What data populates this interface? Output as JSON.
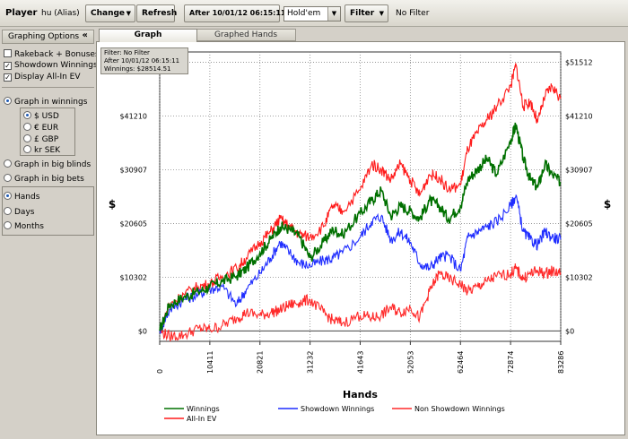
{
  "toolbar": {
    "player_label": "Player",
    "player_value": "hu (Alias)",
    "change_label": "Change",
    "refresh_label": "Refresh",
    "date_filter_label": "After 10/01/12 06:15:11",
    "game_select_value": "Hold'em",
    "filter_label": "Filter",
    "filter_status": "No Filter"
  },
  "sidebar": {
    "title": "Graphing Options",
    "collapse_glyph": "«",
    "checkboxes": [
      {
        "label": "Rakeback + Bonuses",
        "checked": false
      },
      {
        "label": "Showdown Winnings",
        "checked": true
      },
      {
        "label": "Display All-In EV",
        "checked": true
      }
    ],
    "mode_options": [
      {
        "label": "Graph in winnings",
        "selected": true
      },
      {
        "label": "Graph in big blinds",
        "selected": false
      },
      {
        "label": "Graph in big bets",
        "selected": false
      }
    ],
    "currency_options": [
      {
        "label": "$ USD",
        "selected": true
      },
      {
        "label": "€ EUR",
        "selected": false
      },
      {
        "label": "£ GBP",
        "selected": false
      },
      {
        "label": "kr SEK",
        "selected": false
      }
    ],
    "axis_options": [
      {
        "label": "Hands",
        "selected": true
      },
      {
        "label": "Days",
        "selected": false
      },
      {
        "label": "Months",
        "selected": false
      }
    ]
  },
  "tabs": {
    "graph": "Graph",
    "graphed_hands": "Graphed Hands"
  },
  "info_box": {
    "line1": "Filter: No Filter",
    "line2": "After 10/01/12 06:15:11",
    "line3": "Winnings: $28514.51"
  },
  "chart_data": {
    "type": "line",
    "xlabel": "Hands",
    "ylabel": "$",
    "xlim": [
      0,
      83286
    ],
    "ylim": [
      -2000,
      53500
    ],
    "x_ticks": [
      "0",
      "10411",
      "20821",
      "31232",
      "41643",
      "52053",
      "62464",
      "72874",
      "83286"
    ],
    "x_tick_values": [
      0,
      10411,
      20821,
      31232,
      41643,
      52053,
      62464,
      72874,
      83286
    ],
    "y_ticks": [
      "$0",
      "$10302",
      "$20605",
      "$30907",
      "$41210",
      "$51512"
    ],
    "y_tick_values": [
      0,
      10302,
      20605,
      30907,
      41210,
      51512
    ],
    "grid": true,
    "legend_position": "bottom",
    "series": [
      {
        "name": "Winnings",
        "color": "#007000",
        "x": [
          0,
          2000,
          5000,
          8000,
          10411,
          13000,
          16000,
          18000,
          20821,
          23000,
          25000,
          27000,
          29000,
          31232,
          34000,
          36000,
          38000,
          41643,
          44000,
          46000,
          48000,
          50000,
          52053,
          54000,
          56000,
          58000,
          60000,
          62464,
          64000,
          66000,
          68000,
          70000,
          72874,
          74000,
          75500,
          77000,
          78500,
          80000,
          81500,
          83286
        ],
        "y": [
          0,
          5000,
          6500,
          7500,
          8500,
          9500,
          10500,
          12000,
          15000,
          17500,
          20000,
          19500,
          18000,
          14000,
          17000,
          19500,
          18500,
          22500,
          25000,
          27000,
          22000,
          24000,
          23000,
          21500,
          25000,
          24000,
          21500,
          24000,
          29000,
          31000,
          33000,
          30000,
          36500,
          39500,
          33000,
          29000,
          27500,
          32000,
          30000,
          28500
        ]
      },
      {
        "name": "Showdown Winnings",
        "color": "#1f2dff",
        "x": [
          0,
          2000,
          5000,
          8000,
          10411,
          13000,
          16000,
          18000,
          20821,
          23000,
          25000,
          27000,
          29000,
          31232,
          34000,
          36000,
          38000,
          41643,
          44000,
          46000,
          48000,
          50000,
          52053,
          54000,
          56000,
          58000,
          60000,
          62464,
          64000,
          66000,
          68000,
          70000,
          72874,
          74000,
          75500,
          77000,
          78500,
          80000,
          81500,
          83286
        ],
        "y": [
          0,
          4000,
          6000,
          7000,
          8000,
          8500,
          5000,
          8000,
          11000,
          14000,
          17000,
          15000,
          13000,
          12500,
          13500,
          14000,
          15000,
          18000,
          21000,
          22000,
          17500,
          19000,
          17000,
          13000,
          12000,
          14000,
          14500,
          11500,
          18000,
          19000,
          20000,
          21000,
          24000,
          26000,
          19000,
          17500,
          16500,
          19000,
          18000,
          17500
        ]
      },
      {
        "name": "Non Showdown Winnings",
        "color": "#ff2a2a",
        "x": [
          0,
          2000,
          5000,
          8000,
          10411,
          13000,
          16000,
          18000,
          20821,
          23000,
          25000,
          27000,
          29000,
          31232,
          34000,
          36000,
          38000,
          41643,
          44000,
          46000,
          48000,
          50000,
          52053,
          54000,
          56000,
          58000,
          60000,
          62464,
          64000,
          66000,
          68000,
          70000,
          72874,
          74000,
          75500,
          77000,
          78500,
          80000,
          81500,
          83286
        ],
        "y": [
          0,
          -1000,
          -800,
          500,
          300,
          1000,
          2500,
          3500,
          3000,
          3500,
          4000,
          5000,
          5500,
          6000,
          3500,
          2000,
          1500,
          3000,
          2500,
          3000,
          4500,
          3500,
          4500,
          2500,
          7500,
          11000,
          10000,
          9000,
          7500,
          8500,
          9500,
          10500,
          11000,
          12000,
          10000,
          11000,
          11500,
          11000,
          11500,
          11200
        ]
      },
      {
        "name": "All-In EV",
        "color": "#ff1a1a",
        "x": [
          0,
          2000,
          5000,
          8000,
          10411,
          13000,
          16000,
          18000,
          20821,
          23000,
          25000,
          27000,
          29000,
          31232,
          34000,
          36000,
          38000,
          41643,
          44000,
          46000,
          48000,
          50000,
          52053,
          54000,
          56000,
          58000,
          60000,
          62464,
          64000,
          66000,
          68000,
          70000,
          72874,
          74000,
          75500,
          77000,
          78500,
          80000,
          81500,
          83286
        ],
        "y": [
          0,
          5000,
          7000,
          8500,
          9000,
          10500,
          12000,
          14000,
          17000,
          19000,
          21500,
          20000,
          18500,
          18000,
          20000,
          24000,
          23000,
          27000,
          32000,
          31000,
          29000,
          32000,
          29000,
          26000,
          30000,
          29500,
          27000,
          28000,
          35000,
          38000,
          40500,
          43000,
          47000,
          51000,
          43000,
          44000,
          40000,
          45000,
          47000,
          44500
        ]
      }
    ]
  }
}
